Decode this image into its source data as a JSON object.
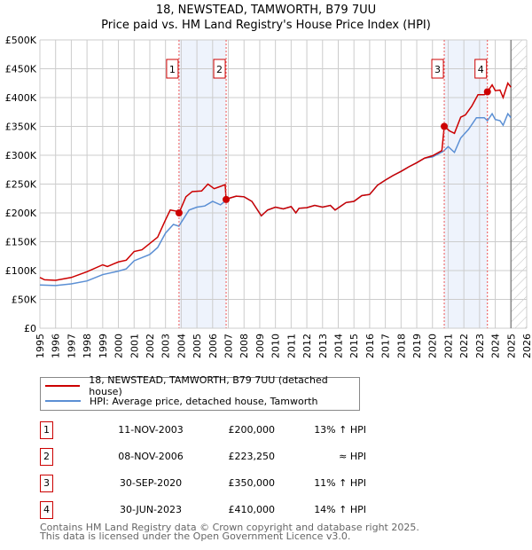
{
  "chart_data": {
    "type": "line",
    "title": "18, NEWSTEAD, TAMWORTH, B79 7UU",
    "subtitle": "Price paid vs. HM Land Registry's House Price Index (HPI)",
    "xlim": [
      1995,
      2026
    ],
    "ylim": [
      0,
      500000
    ],
    "x_ticks": [
      "1995",
      "1996",
      "1997",
      "1998",
      "1999",
      "2000",
      "2001",
      "2002",
      "2003",
      "2004",
      "2005",
      "2006",
      "2007",
      "2008",
      "2009",
      "2010",
      "2011",
      "2012",
      "2013",
      "2014",
      "2015",
      "2016",
      "2017",
      "2018",
      "2019",
      "2020",
      "2021",
      "2022",
      "2023",
      "2024",
      "2025",
      "2026"
    ],
    "y_ticks": [
      "£0",
      "£50K",
      "£100K",
      "£150K",
      "£200K",
      "£250K",
      "£300K",
      "£350K",
      "£400K",
      "£450K",
      "£500K"
    ],
    "grid": true,
    "series": [
      {
        "name": "18, NEWSTEAD, TAMWORTH, B79 7UU (detached house)",
        "color": "#cc0000",
        "x": [
          1995,
          1995.3,
          1996,
          1997,
          1998,
          1999,
          1999.3,
          2000,
          2000.5,
          2001,
          2001.5,
          2002,
          2002.5,
          2003,
          2003.3,
          2003.7,
          2003.86,
          2004.3,
          2004.7,
          2005.3,
          2005.7,
          2006.1,
          2006.4,
          2006.8,
          2006.86,
          2007,
          2007.5,
          2008,
          2008.5,
          2009.1,
          2009.5,
          2010,
          2010.5,
          2011,
          2011.3,
          2011.5,
          2012,
          2012.5,
          2013,
          2013.5,
          2013.8,
          2014.5,
          2015,
          2015.5,
          2016,
          2016.5,
          2017,
          2017.5,
          2018,
          2018.5,
          2019,
          2019.5,
          2020,
          2020.6,
          2020.75,
          2021.1,
          2021.4,
          2021.8,
          2022.1,
          2022.5,
          2022.9,
          2023.3,
          2023.5,
          2023.8,
          2024,
          2024.3,
          2024.5,
          2024.8,
          2025
        ],
        "y": [
          88000,
          84000,
          83000,
          88000,
          98000,
          110000,
          107000,
          115000,
          118000,
          133000,
          136000,
          147000,
          158000,
          188000,
          205000,
          203000,
          200000,
          228000,
          237000,
          238000,
          250000,
          242000,
          245000,
          249000,
          223250,
          225000,
          229000,
          228000,
          220000,
          195000,
          205000,
          210000,
          207000,
          211000,
          200000,
          208000,
          209000,
          213000,
          210000,
          213000,
          205000,
          218000,
          220000,
          230000,
          232000,
          248000,
          257000,
          265000,
          272000,
          280000,
          287000,
          295000,
          299000,
          308000,
          350000,
          342000,
          338000,
          366000,
          370000,
          385000,
          405000,
          405000,
          410000,
          422000,
          412000,
          413000,
          400000,
          425000,
          418000
        ]
      },
      {
        "name": "HPI: Average price, detached house, Tamworth",
        "color": "#5b8fd4",
        "x": [
          1995,
          1996,
          1997,
          1998,
          1999,
          2000,
          2000.5,
          2001,
          2002,
          2002.5,
          2003,
          2003.5,
          2003.85,
          2004.5,
          2005,
          2005.5,
          2006,
          2006.5,
          2006.86,
          2007,
          2007.5,
          2008,
          2008.5,
          2009.1,
          2009.5,
          2010,
          2010.5,
          2011,
          2011.3,
          2011.5,
          2012,
          2012.5,
          2013,
          2013.5,
          2013.8,
          2014.5,
          2015,
          2015.5,
          2016,
          2016.5,
          2017,
          2017.5,
          2018,
          2018.5,
          2019,
          2019.5,
          2020,
          2020.7,
          2021,
          2021.4,
          2021.8,
          2022.3,
          2022.8,
          2023.3,
          2023.5,
          2023.8,
          2024,
          2024.3,
          2024.5,
          2024.8,
          2025
        ],
        "y": [
          75000,
          74000,
          77000,
          82000,
          93000,
          99000,
          103000,
          117000,
          128000,
          140000,
          165000,
          180000,
          177000,
          205000,
          210000,
          212000,
          220000,
          214000,
          222000,
          225000,
          229000,
          228000,
          220000,
          195000,
          205000,
          210000,
          207000,
          211000,
          200000,
          208000,
          209000,
          213000,
          210000,
          213000,
          205000,
          218000,
          220000,
          230000,
          232000,
          248000,
          257000,
          265000,
          272000,
          280000,
          287000,
          295000,
          297000,
          307000,
          315000,
          305000,
          330000,
          345000,
          365000,
          365000,
          360000,
          372000,
          362000,
          360000,
          352000,
          372000,
          365000
        ]
      }
    ],
    "sales": [
      {
        "n": "1",
        "x": 2003.86,
        "price": 200000,
        "date": "11-NOV-2003",
        "price_label": "£200,000",
        "hpi": "13% ↑ HPI"
      },
      {
        "n": "2",
        "x": 2006.86,
        "price": 223250,
        "date": "08-NOV-2006",
        "price_label": "£223,250",
        "hpi": "≈ HPI"
      },
      {
        "n": "3",
        "x": 2020.75,
        "price": 350000,
        "date": "30-SEP-2020",
        "price_label": "£350,000",
        "hpi": "11% ↑ HPI"
      },
      {
        "n": "4",
        "x": 2023.5,
        "price": 410000,
        "date": "30-JUN-2023",
        "price_label": "£410,000",
        "hpi": "14% ↑ HPI"
      }
    ],
    "shaded_ranges": [
      [
        2003.86,
        2006.86
      ],
      [
        2020.75,
        2023.5
      ]
    ],
    "forecast_from": 2025
  },
  "legend": [
    "18, NEWSTEAD, TAMWORTH, B79 7UU (detached house)",
    "HPI: Average price, detached house, Tamworth"
  ],
  "footer": [
    "Contains HM Land Registry data © Crown copyright and database right 2025.",
    "This data is licensed under the Open Government Licence v3.0."
  ]
}
